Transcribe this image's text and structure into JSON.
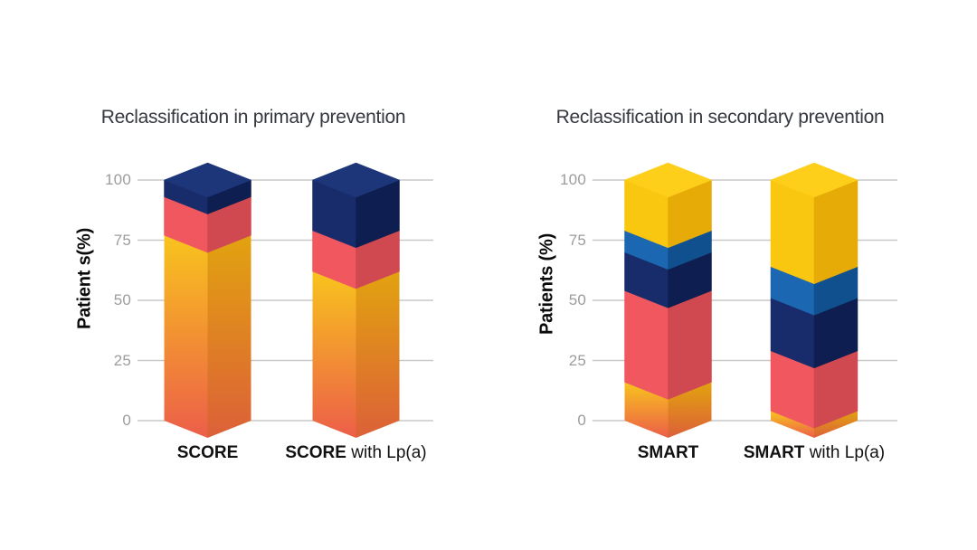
{
  "page": {
    "background": "#ffffff"
  },
  "palette": {
    "gridline": "#c9c9c9",
    "tick_label": "#9c9c9c",
    "title_color": "#35393f",
    "axis_label_color": "#0a0a0a",
    "bar_label_color": "#111111",
    "segments": {
      "orange": {
        "front_top": "#f8c41d",
        "front_bottom": "#ec5e49",
        "side_top": "#e2a30f",
        "side_bottom": "#dc6038"
      },
      "red": {
        "front": "#f0575e",
        "side": "#d14950"
      },
      "navy": {
        "front": "#182c6b",
        "side": "#0e1e50",
        "top": "#1d3579"
      },
      "lightblue": {
        "front": "#1b67b1",
        "side": "#10508f"
      },
      "yellow": {
        "front": "#f9c70f",
        "side": "#e6ab07",
        "top": "#fdcf1a"
      }
    }
  },
  "chart_data": [
    {
      "type": "bar",
      "subtype": "stacked-3d-column",
      "title": "Reclassification in primary prevention",
      "ylabel": "Patient s(%)",
      "xlabel": "",
      "ylim": [
        0,
        100
      ],
      "yticks": [
        100,
        75,
        50,
        25,
        0
      ],
      "grid": true,
      "legend": false,
      "categories": [
        "SCORE",
        "SCORE with Lp(a)"
      ],
      "bars": [
        {
          "label_bold": "SCORE",
          "label_rest": "",
          "segments": [
            {
              "color": "orange",
              "from": 0,
              "to": 77,
              "value": 77
            },
            {
              "color": "red",
              "from": 77,
              "to": 93,
              "value": 16
            },
            {
              "color": "navy",
              "from": 93,
              "to": 100,
              "value": 7
            }
          ]
        },
        {
          "label_bold": "SCORE",
          "label_rest": " with Lp(a)",
          "segments": [
            {
              "color": "orange",
              "from": 0,
              "to": 62,
              "value": 62
            },
            {
              "color": "red",
              "from": 62,
              "to": 79,
              "value": 17
            },
            {
              "color": "navy",
              "from": 79,
              "to": 100,
              "value": 21
            }
          ]
        }
      ]
    },
    {
      "type": "bar",
      "subtype": "stacked-3d-column",
      "title": "Reclassification in secondary prevention",
      "ylabel": "Patients (%)",
      "xlabel": "",
      "ylim": [
        0,
        100
      ],
      "yticks": [
        100,
        75,
        50,
        25,
        0
      ],
      "grid": true,
      "legend": false,
      "categories": [
        "SMART",
        "SMART with Lp(a)"
      ],
      "bars": [
        {
          "label_bold": "SMART",
          "label_rest": "",
          "segments": [
            {
              "color": "orange",
              "from": 0,
              "to": 16,
              "value": 16
            },
            {
              "color": "red",
              "from": 16,
              "to": 54,
              "value": 38
            },
            {
              "color": "navy",
              "from": 54,
              "to": 70,
              "value": 16
            },
            {
              "color": "lightblue",
              "from": 70,
              "to": 79,
              "value": 9
            },
            {
              "color": "yellow",
              "from": 79,
              "to": 100,
              "value": 21
            }
          ]
        },
        {
          "label_bold": "SMART",
          "label_rest": " with Lp(a)",
          "segments": [
            {
              "color": "orange",
              "from": 0,
              "to": 4,
              "value": 4
            },
            {
              "color": "red",
              "from": 4,
              "to": 29,
              "value": 25
            },
            {
              "color": "navy",
              "from": 29,
              "to": 51,
              "value": 22
            },
            {
              "color": "lightblue",
              "from": 51,
              "to": 64,
              "value": 13
            },
            {
              "color": "yellow",
              "from": 64,
              "to": 100,
              "value": 36
            }
          ]
        }
      ]
    }
  ]
}
